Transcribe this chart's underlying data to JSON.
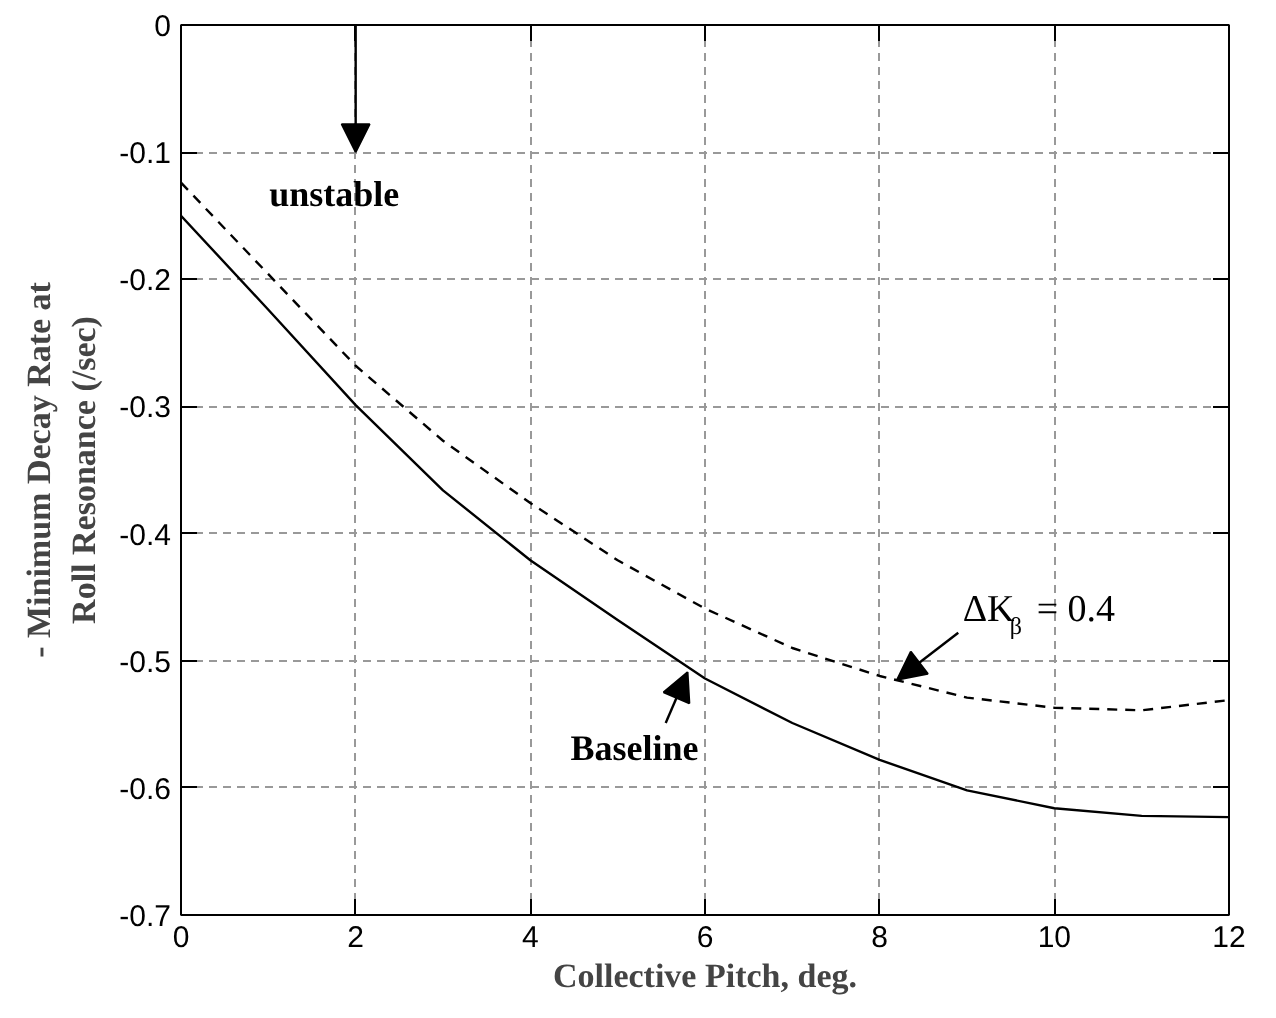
{
  "chart_data": {
    "type": "line",
    "xlabel": "Collective Pitch, deg.",
    "ylabel": "- Minimum Decay Rate at\nRoll Resonance (/sec)",
    "x": [
      0,
      1,
      2,
      3,
      4,
      5,
      6,
      7,
      8,
      9,
      10,
      11,
      12
    ],
    "series": [
      {
        "name": "Baseline",
        "color": "#000000",
        "line_style": "solid",
        "values": [
          -0.15,
          -0.224,
          -0.299,
          -0.366,
          -0.421,
          -0.468,
          -0.514,
          -0.549,
          -0.578,
          -0.602,
          -0.616,
          -0.622,
          -0.623
        ]
      },
      {
        "name": "ΔK$_{β}$ = 0.4",
        "color": "#000000",
        "line_style": "dashed",
        "values": [
          -0.124,
          -0.196,
          -0.268,
          -0.327,
          -0.376,
          -0.421,
          -0.459,
          -0.49,
          -0.512,
          -0.529,
          -0.537,
          -0.539,
          -0.531
        ]
      }
    ],
    "annotations": [
      "unstable"
    ],
    "xlim": [
      0,
      12
    ],
    "ylim": [
      -0.7,
      0
    ],
    "xticks": [
      0,
      2,
      4,
      6,
      8,
      10,
      12
    ],
    "yticks": [
      0,
      -0.1,
      -0.2,
      -0.3,
      -0.4,
      -0.5,
      -0.6,
      -0.7
    ],
    "grid": true,
    "marker": "none"
  }
}
